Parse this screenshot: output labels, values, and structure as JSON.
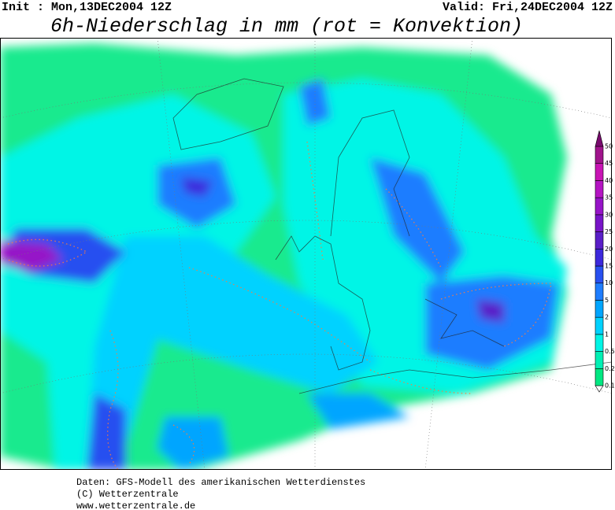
{
  "header": {
    "init": "Init : Mon,13DEC2004  12Z",
    "valid": "Valid: Fri,24DEC2004  12Z",
    "title": "6h-Niederschlag in mm (rot = Konvektion)"
  },
  "legend": {
    "levels": [
      {
        "label": "0.1",
        "color": "#00e882"
      },
      {
        "label": "0.2",
        "color": "#00f0b4"
      },
      {
        "label": "0.5",
        "color": "#00f5e6"
      },
      {
        "label": "1",
        "color": "#00d2ff"
      },
      {
        "label": "2",
        "color": "#00a5ff"
      },
      {
        "label": "5",
        "color": "#1e7dff"
      },
      {
        "label": "10",
        "color": "#2850f0"
      },
      {
        "label": "15",
        "color": "#3c28dc"
      },
      {
        "label": "20",
        "color": "#5a1ec8"
      },
      {
        "label": "25",
        "color": "#7814c8"
      },
      {
        "label": "30",
        "color": "#9614c8"
      },
      {
        "label": "35",
        "color": "#b414c3"
      },
      {
        "label": "40",
        "color": "#c814b4"
      },
      {
        "label": "45",
        "color": "#a0148c"
      },
      {
        "label": "50",
        "color": "#780a6e"
      }
    ]
  },
  "footer": {
    "lines": [
      "Daten: GFS-Modell des amerikanischen Wetterdienstes",
      "(C) Wetterzentrale",
      "www.wetterzentrale.de"
    ]
  }
}
